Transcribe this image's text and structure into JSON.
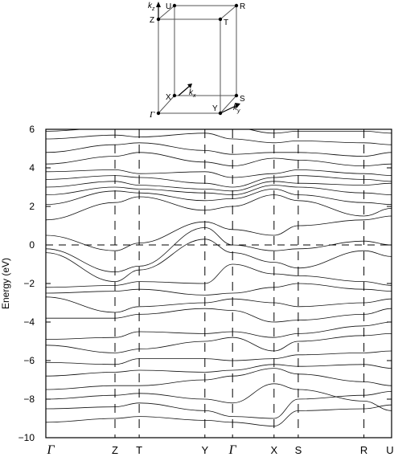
{
  "brillouin_zone": {
    "points": [
      "U",
      "R",
      "Z",
      "T",
      "X",
      "S",
      "Γ",
      "Y"
    ],
    "axes": [
      {
        "k": "k",
        "sub": "z"
      },
      {
        "k": "k",
        "sub": "x"
      },
      {
        "k": "k",
        "sub": "y"
      }
    ]
  },
  "chart_data": {
    "type": "line",
    "title": "",
    "xlabel": "",
    "ylabel": "Energy (eV)",
    "ylim": [
      -10,
      6
    ],
    "yticks": [
      6,
      4,
      2,
      0,
      -2,
      -4,
      -6,
      -8,
      -10
    ],
    "k_path": [
      {
        "label": "Γ",
        "pos": 0.0,
        "greek": true
      },
      {
        "label": "Z",
        "pos": 0.2
      },
      {
        "label": "T",
        "pos": 0.27
      },
      {
        "label": "Y",
        "pos": 0.46
      },
      {
        "label": "Γ",
        "pos": 0.54,
        "greek": true
      },
      {
        "label": "X",
        "pos": 0.66
      },
      {
        "label": "S",
        "pos": 0.73
      },
      {
        "label": "R",
        "pos": 0.92
      },
      {
        "label": "U",
        "pos": 1.0
      }
    ],
    "fermi_level": 0,
    "bands": [
      [
        -9.2,
        -9.0,
        -8.9,
        -9.1,
        -9.2,
        -9.4,
        -8.6,
        -8.5,
        -8.3
      ],
      [
        -8.5,
        -8.4,
        -8.2,
        -8.6,
        -8.9,
        -9.0,
        -8.0,
        -7.8,
        -7.6
      ],
      [
        -8.0,
        -7.8,
        -7.7,
        -8.0,
        -8.2,
        -7.2,
        -7.5,
        -8.1,
        -8.6
      ],
      [
        -7.5,
        -7.3,
        -7.3,
        -7.0,
        -6.8,
        -6.4,
        -6.7,
        -7.1,
        -7.3
      ],
      [
        -6.8,
        -6.6,
        -6.5,
        -6.6,
        -6.5,
        -6.2,
        -6.3,
        -6.2,
        -6.4
      ],
      [
        -6.1,
        -6.2,
        -5.9,
        -5.9,
        -6.0,
        -5.9,
        -5.7,
        -5.6,
        -5.5
      ],
      [
        -5.2,
        -5.6,
        -5.4,
        -5.0,
        -4.8,
        -5.5,
        -5.0,
        -4.7,
        -4.6
      ],
      [
        -4.9,
        -4.8,
        -4.5,
        -4.6,
        -4.5,
        -4.8,
        -4.6,
        -4.2,
        -4.0
      ],
      [
        -3.8,
        -3.8,
        -3.6,
        -3.3,
        -3.4,
        -4.0,
        -3.9,
        -3.6,
        -3.3
      ],
      [
        -2.7,
        -3.5,
        -3.2,
        -3.0,
        -2.8,
        -3.0,
        -3.2,
        -3.0,
        -2.8
      ],
      [
        -2.5,
        -2.4,
        -2.3,
        -2.6,
        -2.5,
        -2.2,
        -2.0,
        -2.3,
        -2.4
      ],
      [
        -2.2,
        -2.1,
        -1.9,
        -2.0,
        -1.0,
        -1.5,
        -1.6,
        -1.9,
        -2.1
      ],
      [
        -0.4,
        -1.9,
        -1.3,
        0.3,
        -0.4,
        -0.9,
        -1.2,
        -0.3,
        -0.6
      ],
      [
        -0.2,
        -1.4,
        -1.1,
        0.9,
        0.0,
        -0.3,
        -0.2,
        0.2,
        0.0
      ],
      [
        0.5,
        -0.3,
        0.1,
        1.2,
        0.8,
        0.5,
        1.0,
        1.3,
        1.5
      ],
      [
        1.3,
        2.2,
        2.5,
        1.8,
        2.0,
        2.6,
        2.3,
        1.5,
        1.9
      ],
      [
        2.1,
        2.8,
        2.7,
        2.3,
        2.4,
        2.9,
        2.6,
        2.2,
        2.1
      ],
      [
        2.6,
        3.0,
        2.9,
        2.7,
        2.6,
        3.1,
        3.0,
        2.7,
        2.6
      ],
      [
        3.0,
        3.3,
        3.1,
        2.9,
        2.8,
        3.3,
        3.2,
        3.1,
        3.2
      ],
      [
        3.4,
        3.6,
        3.5,
        3.2,
        3.0,
        3.5,
        3.6,
        3.4,
        3.3
      ],
      [
        3.8,
        3.9,
        3.7,
        3.8,
        3.5,
        3.7,
        3.9,
        3.7,
        3.6
      ],
      [
        4.2,
        4.6,
        4.8,
        4.3,
        4.1,
        4.5,
        4.4,
        4.1,
        4.2
      ],
      [
        4.8,
        5.2,
        5.3,
        4.9,
        4.7,
        4.8,
        4.8,
        4.6,
        4.8
      ],
      [
        5.5,
        5.7,
        5.6,
        5.8,
        5.5,
        5.3,
        5.4,
        5.3,
        5.2
      ],
      [
        5.9,
        6.1,
        6.0,
        6.2,
        6.1,
        5.8,
        5.9,
        5.9,
        5.8
      ]
    ],
    "grid": false,
    "legend": "none"
  }
}
